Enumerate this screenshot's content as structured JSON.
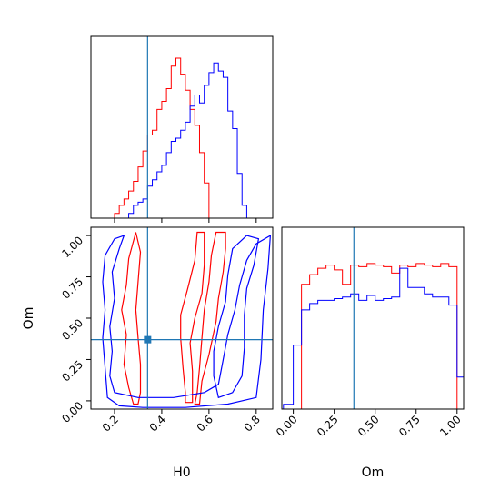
{
  "colors": {
    "series_a": "#ff0000",
    "series_b": "#0000ff",
    "truth": "#1f77b4",
    "axis": "#000000"
  },
  "chart_data": [
    {
      "id": "hist-H0",
      "type": "step-histogram",
      "xlabel": "",
      "ylabel": "",
      "xlim": [
        0.1,
        0.87
      ],
      "ylim": [
        0,
        1.0
      ],
      "bin_edges": [
        0.1,
        0.12,
        0.14,
        0.16,
        0.18,
        0.2,
        0.22,
        0.24,
        0.26,
        0.28,
        0.3,
        0.32,
        0.34,
        0.36,
        0.38,
        0.4,
        0.42,
        0.44,
        0.46,
        0.48,
        0.5,
        0.52,
        0.54,
        0.56,
        0.58,
        0.6,
        0.62,
        0.64,
        0.66,
        0.68,
        0.7,
        0.72,
        0.74,
        0.76,
        0.78,
        0.8,
        0.82,
        0.84,
        0.86
      ],
      "series": [
        {
          "color_key": "series_a",
          "values": [
            0,
            0,
            0,
            0,
            0,
            0.03,
            0.08,
            0.12,
            0.17,
            0.23,
            0.32,
            0.42,
            0.52,
            0.55,
            0.68,
            0.73,
            0.81,
            0.95,
            1.0,
            0.9,
            0.8,
            0.68,
            0.58,
            0.41,
            0.22,
            0,
            0,
            0,
            0,
            0,
            0,
            0,
            0,
            0,
            0,
            0,
            0,
            0
          ]
        },
        {
          "color_key": "series_b",
          "values": [
            0,
            0,
            0,
            0,
            0,
            0,
            0,
            0,
            0.03,
            0.08,
            0.1,
            0.12,
            0.2,
            0.24,
            0.29,
            0.33,
            0.41,
            0.48,
            0.5,
            0.55,
            0.6,
            0.7,
            0.77,
            0.72,
            0.83,
            0.91,
            0.97,
            0.92,
            0.88,
            0.67,
            0.56,
            0.28,
            0.08,
            0,
            0,
            0,
            0,
            0
          ]
        }
      ],
      "truth_x": 0.34
    },
    {
      "id": "contour-H0-Om",
      "type": "contour",
      "xlabel": "H0",
      "ylabel": "Om",
      "xlim": [
        0.1,
        0.87
      ],
      "ylim": [
        -0.05,
        1.05
      ],
      "x_ticks": [
        "0.2",
        "0.4",
        "0.6",
        "0.8"
      ],
      "x_tick_values": [
        0.2,
        0.4,
        0.6,
        0.8
      ],
      "y_ticks": [
        "0.00",
        "0.25",
        "0.50",
        "0.75",
        "1.00"
      ],
      "y_tick_values": [
        0.0,
        0.25,
        0.5,
        0.75,
        1.0
      ],
      "truth": [
        0.34,
        0.37
      ],
      "contours": [
        {
          "color_key": "series_a",
          "level": "outer",
          "points": [
            [
              0.28,
              -0.02
            ],
            [
              0.26,
              0.08
            ],
            [
              0.24,
              0.22
            ],
            [
              0.25,
              0.4
            ],
            [
              0.23,
              0.55
            ],
            [
              0.25,
              0.7
            ],
            [
              0.26,
              0.86
            ],
            [
              0.29,
              1.02
            ],
            [
              0.31,
              0.9
            ],
            [
              0.3,
              0.72
            ],
            [
              0.29,
              0.55
            ],
            [
              0.3,
              0.38
            ],
            [
              0.31,
              0.22
            ],
            [
              0.31,
              0.05
            ],
            [
              0.3,
              -0.02
            ]
          ]
        },
        {
          "color_key": "series_a",
          "level": "outer",
          "points": [
            [
              0.56,
              -0.02
            ],
            [
              0.57,
              0.12
            ],
            [
              0.6,
              0.28
            ],
            [
              0.63,
              0.48
            ],
            [
              0.64,
              0.62
            ],
            [
              0.66,
              0.78
            ],
            [
              0.67,
              0.92
            ],
            [
              0.67,
              1.02
            ],
            [
              0.63,
              1.02
            ],
            [
              0.61,
              0.88
            ],
            [
              0.6,
              0.72
            ],
            [
              0.58,
              0.55
            ],
            [
              0.57,
              0.38
            ],
            [
              0.56,
              0.2
            ],
            [
              0.55,
              0.05
            ],
            [
              0.54,
              -0.02
            ]
          ]
        },
        {
          "color_key": "series_a",
          "level": "inner",
          "points": [
            [
              0.53,
              -0.01
            ],
            [
              0.53,
              0.18
            ],
            [
              0.52,
              0.35
            ],
            [
              0.54,
              0.5
            ],
            [
              0.57,
              0.65
            ],
            [
              0.58,
              0.82
            ],
            [
              0.58,
              1.02
            ],
            [
              0.55,
              1.02
            ],
            [
              0.54,
              0.85
            ],
            [
              0.51,
              0.68
            ],
            [
              0.48,
              0.52
            ],
            [
              0.48,
              0.38
            ],
            [
              0.49,
              0.2
            ],
            [
              0.5,
              0.05
            ],
            [
              0.5,
              -0.01
            ]
          ]
        },
        {
          "color_key": "series_b",
          "level": "outer",
          "points": [
            [
              0.17,
              0.02
            ],
            [
              0.22,
              -0.03
            ],
            [
              0.32,
              -0.04
            ],
            [
              0.5,
              -0.04
            ],
            [
              0.68,
              -0.02
            ],
            [
              0.8,
              0.02
            ],
            [
              0.82,
              0.25
            ],
            [
              0.83,
              0.55
            ],
            [
              0.85,
              0.8
            ],
            [
              0.86,
              1.0
            ],
            [
              0.8,
              0.95
            ],
            [
              0.76,
              0.85
            ],
            [
              0.73,
              0.7
            ],
            [
              0.71,
              0.55
            ],
            [
              0.68,
              0.4
            ],
            [
              0.66,
              0.25
            ],
            [
              0.64,
              0.1
            ],
            [
              0.58,
              0.05
            ],
            [
              0.45,
              0.02
            ],
            [
              0.3,
              0.02
            ],
            [
              0.2,
              0.05
            ],
            [
              0.18,
              0.15
            ],
            [
              0.19,
              0.3
            ],
            [
              0.18,
              0.45
            ],
            [
              0.2,
              0.62
            ],
            [
              0.19,
              0.78
            ],
            [
              0.22,
              0.92
            ],
            [
              0.24,
              1.0
            ],
            [
              0.2,
              0.98
            ],
            [
              0.16,
              0.88
            ],
            [
              0.15,
              0.72
            ],
            [
              0.16,
              0.55
            ],
            [
              0.15,
              0.38
            ],
            [
              0.16,
              0.2
            ],
            [
              0.17,
              0.02
            ]
          ]
        },
        {
          "color_key": "series_b",
          "level": "inner",
          "points": [
            [
              0.64,
              0.02
            ],
            [
              0.7,
              0.05
            ],
            [
              0.74,
              0.15
            ],
            [
              0.75,
              0.32
            ],
            [
              0.75,
              0.52
            ],
            [
              0.76,
              0.68
            ],
            [
              0.79,
              0.82
            ],
            [
              0.81,
              0.98
            ],
            [
              0.76,
              1.0
            ],
            [
              0.7,
              0.92
            ],
            [
              0.68,
              0.76
            ],
            [
              0.67,
              0.6
            ],
            [
              0.64,
              0.45
            ],
            [
              0.62,
              0.3
            ],
            [
              0.62,
              0.15
            ],
            [
              0.64,
              0.02
            ]
          ]
        }
      ]
    },
    {
      "id": "hist-Om",
      "type": "step-histogram",
      "xlabel": "Om",
      "ylabel": "",
      "xlim": [
        -0.07,
        1.04
      ],
      "ylim": [
        0,
        1.0
      ],
      "x_ticks": [
        "0.00",
        "0.25",
        "0.50",
        "0.75",
        "1.00"
      ],
      "x_tick_values": [
        0.0,
        0.25,
        0.5,
        0.75,
        1.0
      ],
      "bin_edges": [
        -0.06,
        0.0,
        0.05,
        0.1,
        0.15,
        0.2,
        0.25,
        0.3,
        0.35,
        0.4,
        0.45,
        0.5,
        0.55,
        0.6,
        0.65,
        0.7,
        0.75,
        0.8,
        0.85,
        0.9,
        0.95,
        1.0,
        1.04
      ],
      "series": [
        {
          "color_key": "series_a",
          "values": [
            0,
            0.0,
            0.78,
            0.84,
            0.88,
            0.9,
            0.87,
            0.78,
            0.9,
            0.89,
            0.91,
            0.9,
            0.89,
            0.85,
            0.9,
            0.89,
            0.91,
            0.9,
            0.89,
            0.91,
            0.89,
            0
          ]
        },
        {
          "color_key": "series_b",
          "values": [
            0.03,
            0.4,
            0.62,
            0.66,
            0.68,
            0.68,
            0.69,
            0.7,
            0.72,
            0.68,
            0.71,
            0.68,
            0.69,
            0.7,
            0.88,
            0.76,
            0.76,
            0.72,
            0.7,
            0.7,
            0.65,
            0.2
          ]
        }
      ],
      "truth_x": 0.37
    }
  ]
}
